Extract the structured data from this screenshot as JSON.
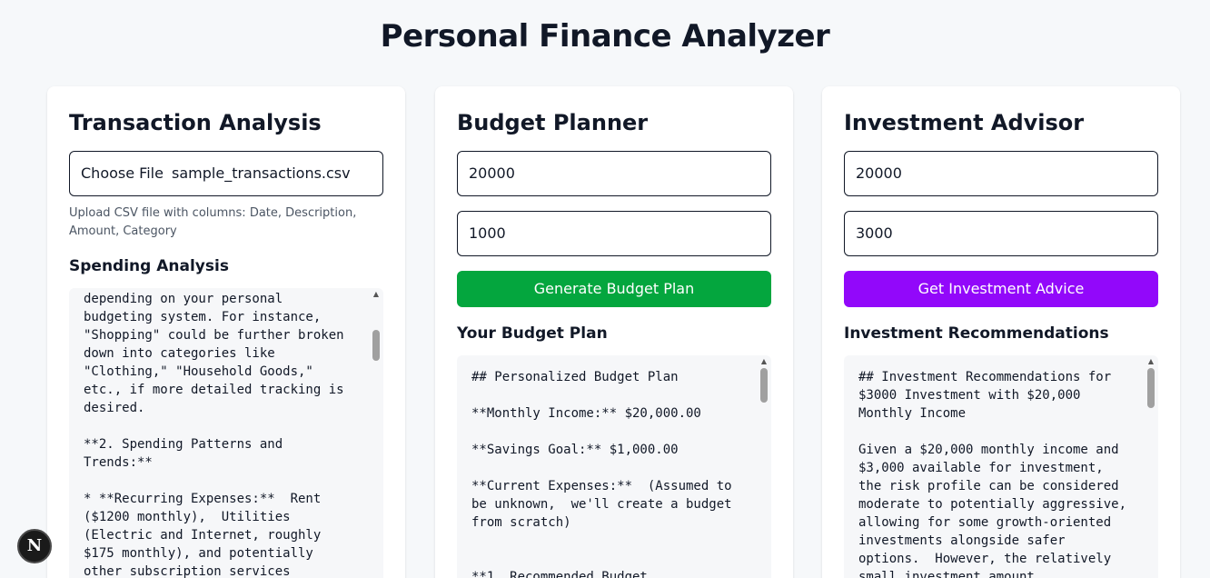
{
  "page": {
    "title": "Personal Finance Analyzer"
  },
  "transaction": {
    "title": "Transaction Analysis",
    "file_button": "Choose File",
    "file_name": "sample_transactions.csv",
    "help": "Upload CSV file with columns: Date, Description, Amount, Category",
    "section_title": "Spending Analysis",
    "result_text": "depending on your personal\nbudgeting system. For instance,\n\"Shopping\" could be further broken\ndown into categories like\n\"Clothing,\" \"Household Goods,\"\netc., if more detailed tracking is\ndesired.\n\n**2. Spending Patterns and\nTrends:**\n\n* **Recurring Expenses:**  Rent\n($1200 monthly),  Utilities\n(Electric and Internet, roughly\n$175 monthly), and potentially\nother subscription services"
  },
  "budget": {
    "title": "Budget Planner",
    "income_value": "20000",
    "savings_value": "1000",
    "button_label": "Generate Budget Plan",
    "section_title": "Your Budget Plan",
    "result_text": "## Personalized Budget Plan\n\n**Monthly Income:** $20,000.00\n\n**Savings Goal:** $1,000.00\n\n**Current Expenses:**  (Assumed to\nbe unknown,  we'll create a budget\nfrom scratch)\n\n\n**1. Recommended Budget"
  },
  "investment": {
    "title": "Investment Advisor",
    "income_value": "20000",
    "amount_value": "3000",
    "button_label": "Get Investment Advice",
    "section_title": "Investment Recommendations",
    "result_text": "## Investment Recommendations for\n$3000 Investment with $20,000\nMonthly Income\n\nGiven a $20,000 monthly income and\n$3,000 available for investment,\nthe risk profile can be considered\nmoderate to potentially aggressive,\nallowing for some growth-oriented\ninvestments alongside safer\noptions.  However, the relatively\nsmall investment amount"
  },
  "badge": {
    "label": "N"
  },
  "colors": {
    "budget_button": "#04a63e",
    "investment_button": "#9208fa",
    "background": "#f6f8fa"
  }
}
